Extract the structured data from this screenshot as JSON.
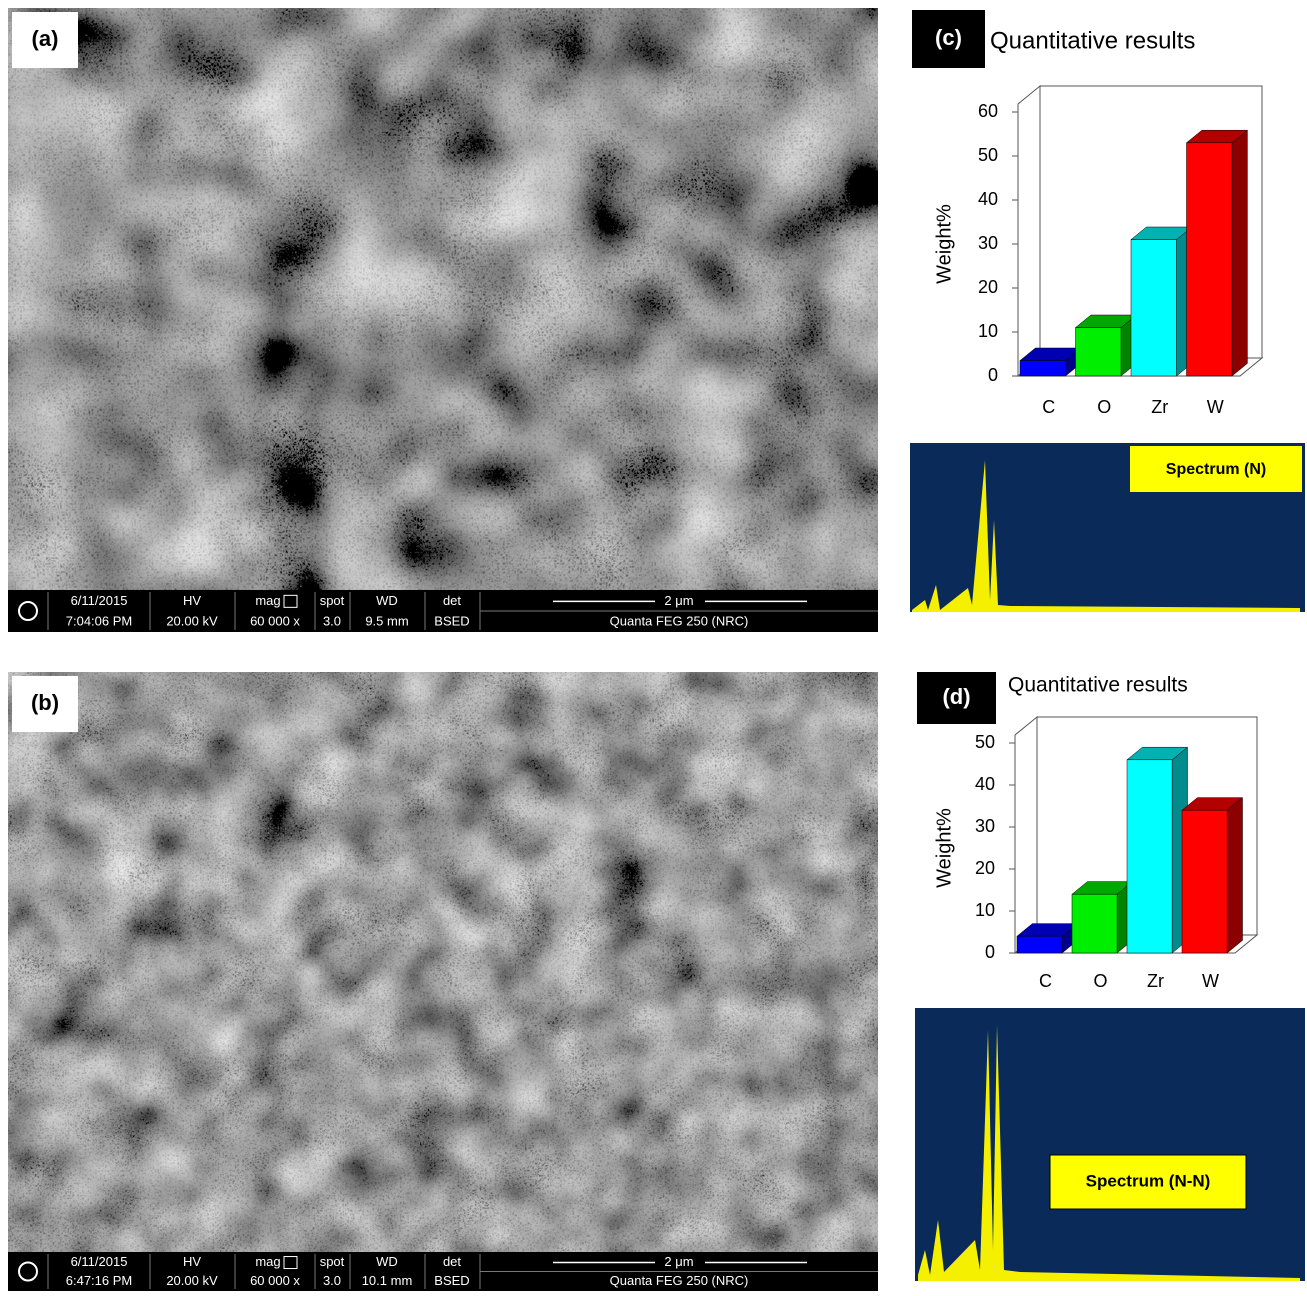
{
  "panels": [
    {
      "label": "(a)",
      "info": {
        "date": "6/11/2015",
        "time": "7:04:06 PM",
        "hv_head": "HV",
        "hv": "20.00 kV",
        "mag_head": "mag",
        "mag": "60 000 x",
        "spot_head": "spot",
        "spot": "3.0",
        "wd_head": "WD",
        "wd": "9.5 mm",
        "det_head": "det",
        "det": "BSED",
        "scale": "2 μm",
        "instrument": "Quanta FEG 250 (NRC)"
      }
    },
    {
      "label": "(b)",
      "info": {
        "date": "6/11/2015",
        "time": "6:47:16 PM",
        "hv_head": "HV",
        "hv": "20.00 kV",
        "mag_head": "mag",
        "mag": "60 000 x",
        "spot_head": "spot",
        "spot": "3.0",
        "wd_head": "WD",
        "wd": "10.1 mm",
        "det_head": "det",
        "det": "BSED",
        "scale": "2 μm",
        "instrument": "Quanta FEG 250 (NRC)"
      }
    }
  ],
  "chart_data": [
    {
      "type": "bar",
      "label": "(c)",
      "title": "Quantitative results",
      "ylabel": "Weight%",
      "categories": [
        "C",
        "O",
        "Zr",
        "W"
      ],
      "values": [
        3.5,
        11,
        31,
        53
      ],
      "colors": [
        "#0000ff",
        "#00ee00",
        "#00ffff",
        "#ff0000"
      ],
      "ylim": [
        0,
        60
      ],
      "yticks": [
        0,
        10,
        20,
        30,
        40,
        50,
        60
      ],
      "spectrum_label": "Spectrum (N)"
    },
    {
      "type": "bar",
      "label": "(d)",
      "title": "Quantitative results",
      "ylabel": "Weight%",
      "categories": [
        "C",
        "O",
        "Zr",
        "W"
      ],
      "values": [
        4,
        14,
        46,
        34
      ],
      "colors": [
        "#0000ff",
        "#00ee00",
        "#00ffff",
        "#ff0000"
      ],
      "ylim": [
        0,
        50
      ],
      "yticks": [
        0,
        10,
        20,
        30,
        40,
        50
      ],
      "spectrum_label": "Spectrum (N-N)"
    }
  ]
}
